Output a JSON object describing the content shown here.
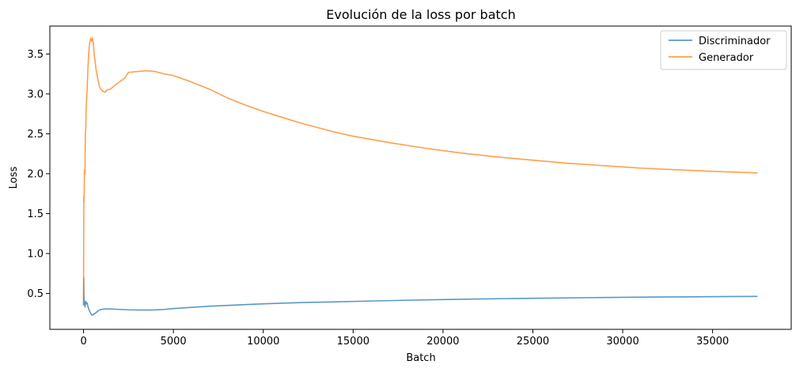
{
  "chart_data": {
    "type": "line",
    "title": "Evolución de la loss por batch",
    "xlabel": "Batch",
    "ylabel": "Loss",
    "xlim": [
      -1875,
      39375
    ],
    "ylim": [
      0.05,
      3.85
    ],
    "x_ticks": [
      0,
      5000,
      10000,
      15000,
      20000,
      25000,
      30000,
      35000
    ],
    "y_ticks": [
      0.5,
      1.0,
      1.5,
      2.0,
      2.5,
      3.0,
      3.5
    ],
    "x_tick_labels": [
      "0",
      "5000",
      "10000",
      "15000",
      "20000",
      "25000",
      "30000",
      "35000"
    ],
    "y_tick_labels": [
      "0.5",
      "1.0",
      "1.5",
      "2.0",
      "2.5",
      "3.0",
      "3.5"
    ],
    "grid": false,
    "legend_position": "top-right",
    "series": [
      {
        "name": "Discriminador",
        "color": "#1f77b4",
        "x": [
          0,
          10,
          25,
          50,
          80,
          120,
          160,
          200,
          250,
          300,
          350,
          400,
          450,
          500,
          600,
          700,
          800,
          900,
          1000,
          1200,
          1500,
          2000,
          2500,
          3000,
          3500,
          4000,
          4500,
          5000,
          6000,
          7000,
          8000,
          9000,
          10000,
          12000,
          14000,
          16000,
          18000,
          20000,
          22000,
          24000,
          26000,
          28000,
          30000,
          32000,
          34000,
          36000,
          37500
        ],
        "values": [
          0.35,
          0.7,
          0.45,
          0.38,
          0.33,
          0.4,
          0.37,
          0.38,
          0.33,
          0.3,
          0.27,
          0.25,
          0.23,
          0.23,
          0.245,
          0.26,
          0.28,
          0.295,
          0.3,
          0.305,
          0.305,
          0.3,
          0.295,
          0.293,
          0.292,
          0.294,
          0.3,
          0.31,
          0.325,
          0.34,
          0.35,
          0.36,
          0.37,
          0.385,
          0.395,
          0.405,
          0.415,
          0.423,
          0.43,
          0.437,
          0.442,
          0.447,
          0.451,
          0.455,
          0.458,
          0.461,
          0.463
        ]
      },
      {
        "name": "Generador",
        "color": "#ff7f0e",
        "x": [
          0,
          15,
          30,
          50,
          80,
          100,
          120,
          150,
          200,
          250,
          300,
          350,
          400,
          450,
          500,
          550,
          600,
          650,
          700,
          800,
          900,
          1000,
          1100,
          1200,
          1300,
          1500,
          1700,
          2000,
          2300,
          2500,
          3000,
          3500,
          4000,
          4500,
          5000,
          5500,
          6000,
          7000,
          8000,
          9000,
          10000,
          11000,
          12000,
          13000,
          14000,
          15000,
          17000,
          19000,
          21000,
          23000,
          25000,
          27000,
          29000,
          31000,
          33000,
          35000,
          37500
        ],
        "values": [
          0.4,
          1.72,
          1.65,
          2.05,
          2.0,
          2.5,
          2.55,
          2.85,
          3.05,
          3.35,
          3.55,
          3.65,
          3.7,
          3.66,
          3.7,
          3.62,
          3.48,
          3.4,
          3.3,
          3.18,
          3.08,
          3.05,
          3.03,
          3.02,
          3.05,
          3.06,
          3.1,
          3.15,
          3.2,
          3.27,
          3.28,
          3.29,
          3.28,
          3.25,
          3.23,
          3.19,
          3.15,
          3.06,
          2.95,
          2.86,
          2.78,
          2.71,
          2.64,
          2.58,
          2.52,
          2.47,
          2.39,
          2.32,
          2.26,
          2.21,
          2.17,
          2.13,
          2.1,
          2.07,
          2.05,
          2.03,
          2.01
        ]
      }
    ]
  }
}
